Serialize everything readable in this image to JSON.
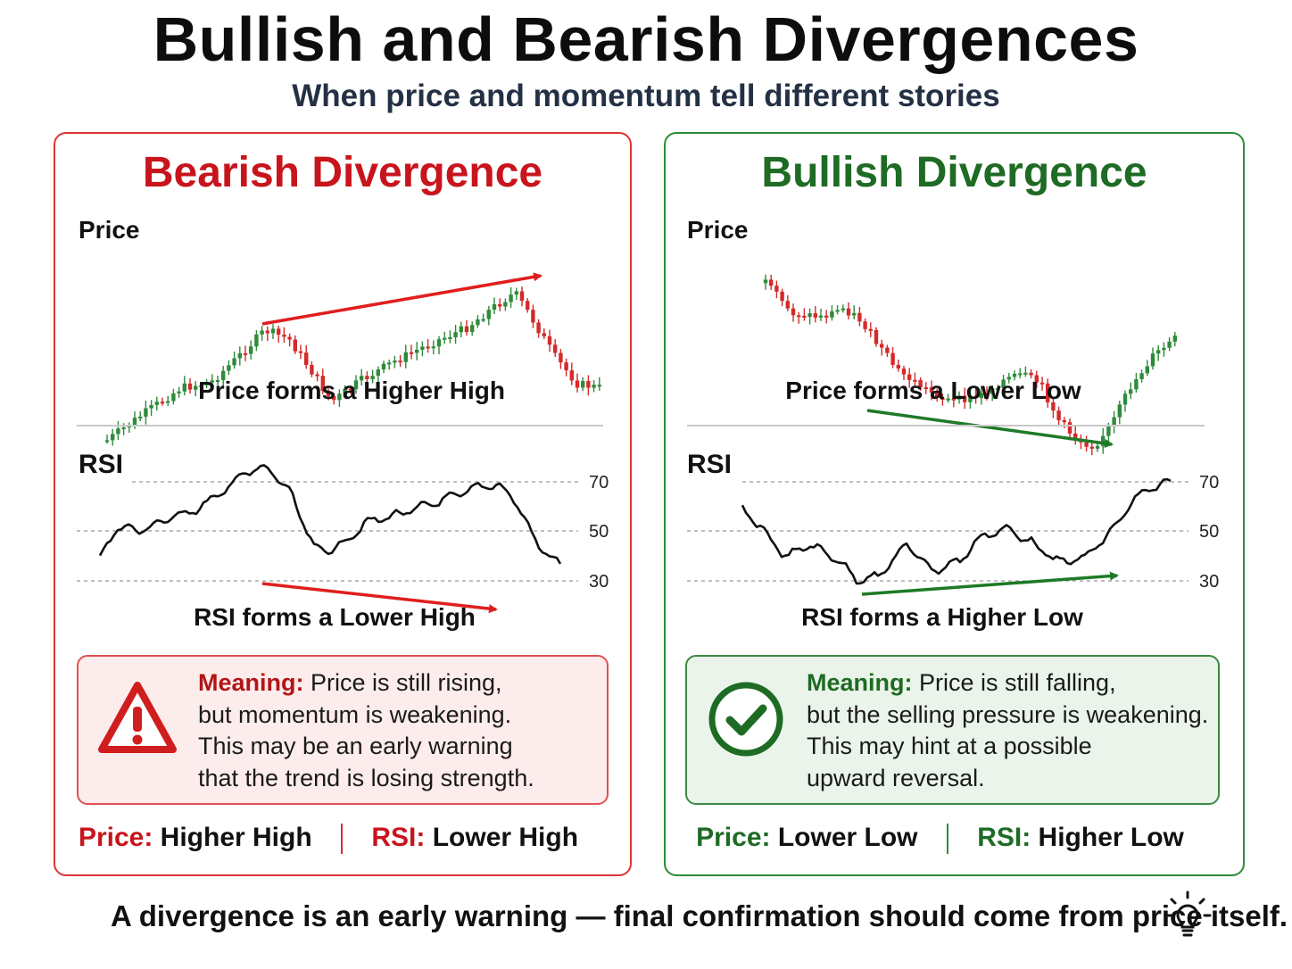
{
  "title": "Bullish and Bearish Divergences",
  "subtitle": "When price and momentum tell different stories",
  "colors": {
    "bear": "#c8141c",
    "bull": "#1e6b24",
    "candle_up": "#2e8b3a",
    "candle_down": "#d42a2a"
  },
  "bear_panel": {
    "title": "Bearish Divergence",
    "price_label": "Price",
    "price_caption": "Price forms a Higher High",
    "rsi_label": "RSI",
    "rsi_levels": [
      "70",
      "50",
      "30"
    ],
    "rsi_caption": "RSI forms a Lower High",
    "icon": "warning-icon",
    "meaning_key": "Meaning:",
    "meaning_lines": [
      "Price is still rising,",
      "but momentum is weakening.",
      "This may be an early warning",
      "that the trend is losing strength."
    ],
    "summary": {
      "price_key": "Price:",
      "price_value": "Higher High",
      "rsi_key": "RSI:",
      "rsi_value": "Lower High"
    }
  },
  "bull_panel": {
    "title": "Bullish Divergence",
    "price_label": "Price",
    "price_caption": "Price forms a Lower Low",
    "rsi_label": "RSI",
    "rsi_levels": [
      "70",
      "50",
      "30"
    ],
    "rsi_caption": "RSI forms a Higher Low",
    "icon": "checkmark-icon",
    "meaning_key": "Meaning:",
    "meaning_lines": [
      "Price is still falling,",
      "but the selling pressure is weakening.",
      "This may hint at a possible",
      "upward reversal."
    ],
    "summary": {
      "price_key": "Price:",
      "price_value": "Lower Low",
      "rsi_key": "RSI:",
      "rsi_value": "Higher Low"
    }
  },
  "footer": "A divergence is an early warning — final confirmation should come from price itself.",
  "footer_icon": "lightbulb-icon"
}
